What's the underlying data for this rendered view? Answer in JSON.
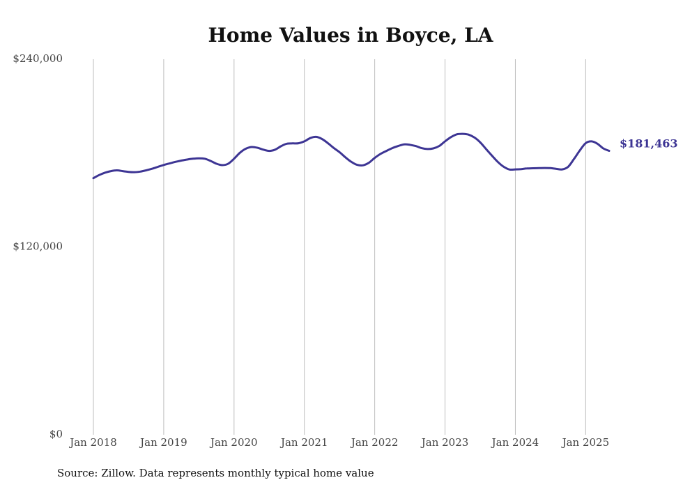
{
  "chart_data": {
    "type": "line",
    "title": "Home Values in Boyce, LA",
    "xlabel": "",
    "ylabel": "",
    "source": "Source: Zillow. Data represents monthly typical home value",
    "ylim": [
      0,
      240000
    ],
    "yticks": [
      {
        "value": 0,
        "label": "$0"
      },
      {
        "value": 120000,
        "label": "$120,000"
      },
      {
        "value": 240000,
        "label": "$240,000"
      }
    ],
    "xticks": [
      {
        "date": "2018-01",
        "label": "Jan 2018"
      },
      {
        "date": "2019-01",
        "label": "Jan 2019"
      },
      {
        "date": "2020-01",
        "label": "Jan 2020"
      },
      {
        "date": "2021-01",
        "label": "Jan 2021"
      },
      {
        "date": "2022-01",
        "label": "Jan 2022"
      },
      {
        "date": "2023-01",
        "label": "Jan 2023"
      },
      {
        "date": "2024-01",
        "label": "Jan 2024"
      },
      {
        "date": "2025-01",
        "label": "Jan 2025"
      }
    ],
    "xlim": [
      "2018-01",
      "2025-05"
    ],
    "grid": "vertical",
    "color": "#3d3594",
    "end_label": "$181,463",
    "series": [
      {
        "x": [
          "2018-01",
          "2018-02",
          "2018-03",
          "2018-04",
          "2018-05",
          "2018-06",
          "2018-07",
          "2018-08",
          "2018-09",
          "2018-10",
          "2018-11",
          "2018-12",
          "2019-01",
          "2019-02",
          "2019-03",
          "2019-04",
          "2019-05",
          "2019-06",
          "2019-07",
          "2019-08",
          "2019-09",
          "2019-10",
          "2019-11",
          "2019-12",
          "2020-01",
          "2020-02",
          "2020-03",
          "2020-04",
          "2020-05",
          "2020-06",
          "2020-07",
          "2020-08",
          "2020-09",
          "2020-10",
          "2020-11",
          "2020-12",
          "2021-01",
          "2021-02",
          "2021-03",
          "2021-04",
          "2021-05",
          "2021-06",
          "2021-07",
          "2021-08",
          "2021-09",
          "2021-10",
          "2021-11",
          "2021-12",
          "2022-01",
          "2022-02",
          "2022-03",
          "2022-04",
          "2022-05",
          "2022-06",
          "2022-07",
          "2022-08",
          "2022-09",
          "2022-10",
          "2022-11",
          "2022-12",
          "2023-01",
          "2023-02",
          "2023-03",
          "2023-04",
          "2023-05",
          "2023-06",
          "2023-07",
          "2023-08",
          "2023-09",
          "2023-10",
          "2023-11",
          "2023-12",
          "2024-01",
          "2024-02",
          "2024-03",
          "2024-04",
          "2024-05",
          "2024-06",
          "2024-07",
          "2024-08",
          "2024-09",
          "2024-10",
          "2024-11",
          "2024-12",
          "2025-01",
          "2025-02",
          "2025-03",
          "2025-04",
          "2025-05"
        ],
        "values": [
          164000,
          166000,
          167500,
          168500,
          169000,
          168500,
          168000,
          167800,
          168200,
          169000,
          170000,
          171200,
          172400,
          173400,
          174400,
          175200,
          175900,
          176400,
          176700,
          176400,
          175000,
          173200,
          172300,
          173200,
          176400,
          180200,
          182800,
          183900,
          183400,
          182200,
          181400,
          182200,
          184400,
          186000,
          186200,
          186300,
          187500,
          189600,
          190400,
          189000,
          186400,
          183300,
          180600,
          177300,
          174400,
          172500,
          172200,
          173800,
          176900,
          179500,
          181400,
          183200,
          184500,
          185600,
          185300,
          184500,
          183200,
          182600,
          183000,
          184500,
          187500,
          190200,
          192000,
          192300,
          191800,
          190000,
          186900,
          182600,
          178400,
          174400,
          171300,
          169500,
          169600,
          169800,
          170200,
          170300,
          170400,
          170500,
          170400,
          169900,
          169600,
          171200,
          176200,
          181700,
          186400,
          187500,
          186000,
          183000,
          181463
        ]
      }
    ]
  }
}
